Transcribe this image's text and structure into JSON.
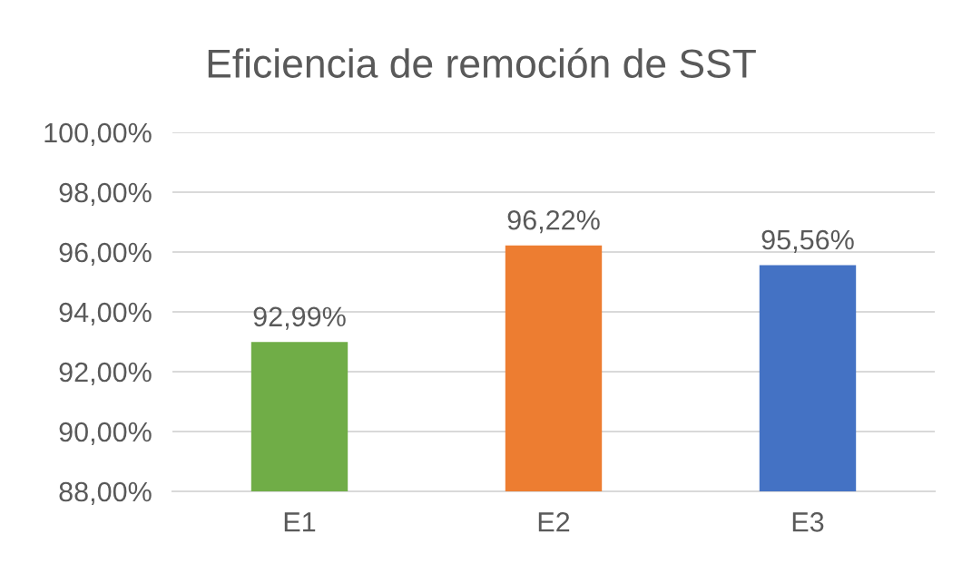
{
  "chart_data": {
    "type": "bar",
    "title": "Eficiencia de remoción de SST",
    "categories": [
      "E1",
      "E2",
      "E3"
    ],
    "values": [
      92.99,
      96.22,
      95.56
    ],
    "colors": [
      "#70ad47",
      "#ed7d31",
      "#4472c4"
    ],
    "value_labels": [
      "92,99%",
      "96,22%",
      "95,56%"
    ],
    "ylim": [
      88,
      100
    ],
    "yticks": [
      {
        "value": 88,
        "label": "88,00%"
      },
      {
        "value": 90,
        "label": "90,00%"
      },
      {
        "value": 92,
        "label": "92,00%"
      },
      {
        "value": 94,
        "label": "94,00%"
      },
      {
        "value": 96,
        "label": "96,00%"
      },
      {
        "value": 98,
        "label": "98,00%"
      },
      {
        "value": 100,
        "label": "100,00%"
      }
    ],
    "grid": "y",
    "legend": false
  }
}
